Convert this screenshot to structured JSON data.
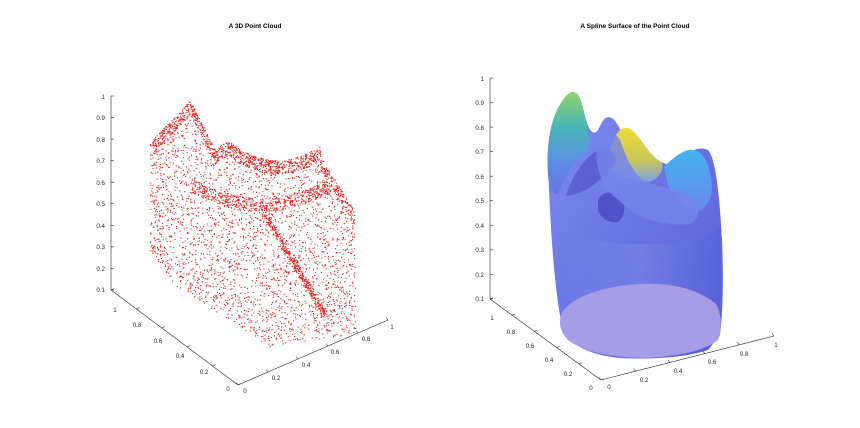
{
  "colors": {
    "point_color": "#e8211d",
    "axis_color": "#262626",
    "surface_base": "#6f78e6",
    "surface_bottom": "#a89ce4",
    "surface_highlight_yellow": "#e6d94a",
    "surface_highlight_green": "#6dc98c",
    "surface_highlight_cyan": "#4fb3e8"
  },
  "chart_data": [
    {
      "type": "scatter",
      "projection": "3d",
      "title": "A 3D Point Cloud",
      "xlabel": "",
      "ylabel": "",
      "zlabel": "",
      "grid": false,
      "x_ticks": [
        "0",
        "0.2",
        "0.4",
        "0.6",
        "0.8",
        "1"
      ],
      "y_ticks": [
        "0",
        "0.2",
        "0.4",
        "0.6",
        "0.8",
        "1"
      ],
      "z_ticks": [
        "0.1",
        "0.2",
        "0.3",
        "0.4",
        "0.5",
        "0.6",
        "0.7",
        "0.8",
        "0.9",
        "1"
      ],
      "xlim": [
        0,
        1
      ],
      "ylim": [
        0,
        1
      ],
      "zlim": [
        0.1,
        1
      ],
      "marker_color": "#e8211d"
    },
    {
      "type": "surface",
      "projection": "3d",
      "title": "A Spline Surface of the Point Cloud",
      "xlabel": "",
      "ylabel": "",
      "zlabel": "",
      "grid": false,
      "x_ticks": [
        "0",
        "0.2",
        "0.4",
        "0.6",
        "0.8",
        "1"
      ],
      "y_ticks": [
        "0",
        "0.2",
        "0.4",
        "0.6",
        "0.8",
        "1"
      ],
      "z_ticks": [
        "0.1",
        "0.2",
        "0.3",
        "0.4",
        "0.5",
        "0.6",
        "0.7",
        "0.8",
        "0.9",
        "1"
      ],
      "xlim": [
        0,
        1
      ],
      "ylim": [
        0,
        1
      ],
      "zlim": [
        0.1,
        1
      ],
      "colormap": "parula"
    }
  ]
}
